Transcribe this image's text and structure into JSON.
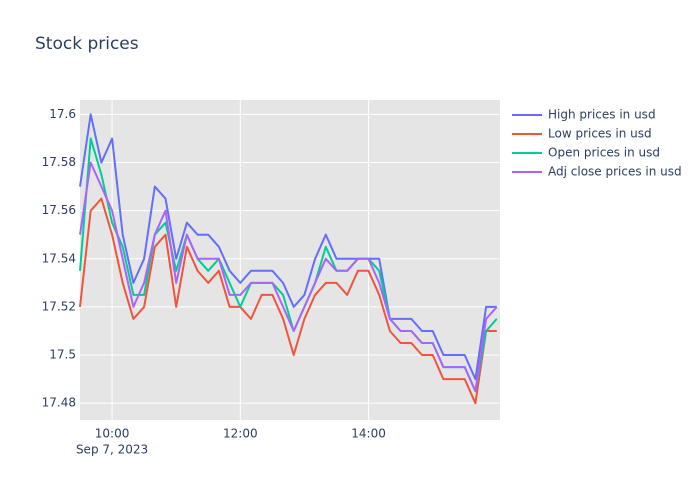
{
  "chart_data": {
    "type": "line",
    "title": "Stock prices",
    "x": [
      "2023-09-07 09:30",
      "2023-09-07 09:40",
      "2023-09-07 09:50",
      "2023-09-07 10:00",
      "2023-09-07 10:10",
      "2023-09-07 10:20",
      "2023-09-07 10:30",
      "2023-09-07 10:40",
      "2023-09-07 10:50",
      "2023-09-07 11:00",
      "2023-09-07 11:10",
      "2023-09-07 11:20",
      "2023-09-07 11:30",
      "2023-09-07 11:40",
      "2023-09-07 11:50",
      "2023-09-07 12:00",
      "2023-09-07 12:10",
      "2023-09-07 12:20",
      "2023-09-07 12:30",
      "2023-09-07 12:40",
      "2023-09-07 12:50",
      "2023-09-07 13:00",
      "2023-09-07 13:10",
      "2023-09-07 13:20",
      "2023-09-07 13:30",
      "2023-09-07 13:40",
      "2023-09-07 13:50",
      "2023-09-07 14:00",
      "2023-09-07 14:10",
      "2023-09-07 14:20",
      "2023-09-07 14:30",
      "2023-09-07 14:40",
      "2023-09-07 14:50",
      "2023-09-07 15:00",
      "2023-09-07 15:10",
      "2023-09-07 15:20",
      "2023-09-07 15:30",
      "2023-09-07 15:40",
      "2023-09-07 15:50",
      "2023-09-07 16:00"
    ],
    "series": [
      {
        "name": "High prices in usd",
        "color": "#636efa",
        "values": [
          17.57,
          17.6,
          17.58,
          17.59,
          17.55,
          17.53,
          17.54,
          17.57,
          17.565,
          17.54,
          17.555,
          17.55,
          17.55,
          17.545,
          17.535,
          17.53,
          17.535,
          17.535,
          17.535,
          17.53,
          17.52,
          17.525,
          17.54,
          17.55,
          17.54,
          17.54,
          17.54,
          17.54,
          17.54,
          17.515,
          17.515,
          17.515,
          17.51,
          17.51,
          17.5,
          17.5,
          17.5,
          17.49,
          17.52,
          17.52
        ]
      },
      {
        "name": "Low prices in usd",
        "color": "#ef553b",
        "values": [
          17.52,
          17.56,
          17.565,
          17.55,
          17.53,
          17.515,
          17.52,
          17.545,
          17.55,
          17.52,
          17.545,
          17.535,
          17.53,
          17.535,
          17.52,
          17.52,
          17.515,
          17.525,
          17.525,
          17.515,
          17.5,
          17.515,
          17.525,
          17.53,
          17.53,
          17.525,
          17.535,
          17.535,
          17.525,
          17.51,
          17.505,
          17.505,
          17.5,
          17.5,
          17.49,
          17.49,
          17.49,
          17.48,
          17.51,
          17.51
        ]
      },
      {
        "name": "Open prices in usd",
        "color": "#00cc96",
        "values": [
          17.535,
          17.59,
          17.575,
          17.555,
          17.545,
          17.525,
          17.525,
          17.55,
          17.555,
          17.535,
          17.55,
          17.54,
          17.535,
          17.54,
          17.53,
          17.52,
          17.53,
          17.53,
          17.53,
          17.525,
          17.51,
          17.52,
          17.53,
          17.545,
          17.535,
          17.535,
          17.54,
          17.54,
          17.535,
          17.515,
          17.51,
          17.51,
          17.505,
          17.505,
          17.495,
          17.495,
          17.495,
          17.485,
          17.51,
          17.515
        ]
      },
      {
        "name": "Adj close prices in usd",
        "color": "#ab63fa",
        "values": [
          17.55,
          17.58,
          17.57,
          17.56,
          17.54,
          17.52,
          17.53,
          17.55,
          17.56,
          17.53,
          17.55,
          17.54,
          17.54,
          17.54,
          17.525,
          17.525,
          17.53,
          17.53,
          17.53,
          17.52,
          17.51,
          17.52,
          17.53,
          17.54,
          17.535,
          17.535,
          17.54,
          17.54,
          17.53,
          17.515,
          17.51,
          17.51,
          17.505,
          17.505,
          17.495,
          17.495,
          17.495,
          17.485,
          17.515,
          17.52
        ]
      }
    ],
    "xlim": [
      "2023-09-07 09:30",
      "2023-09-07 16:03"
    ],
    "xticks": [
      {
        "value": "2023-09-07 10:00",
        "label": "10:00"
      },
      {
        "value": "2023-09-07 12:00",
        "label": "12:00"
      },
      {
        "value": "2023-09-07 14:00",
        "label": "14:00"
      }
    ],
    "x_date_label": "Sep 7, 2023",
    "ylim": [
      17.473,
      17.606
    ],
    "yticks": [
      17.48,
      17.5,
      17.52,
      17.54,
      17.56,
      17.58,
      17.6
    ],
    "grid": true,
    "legend": "right"
  }
}
